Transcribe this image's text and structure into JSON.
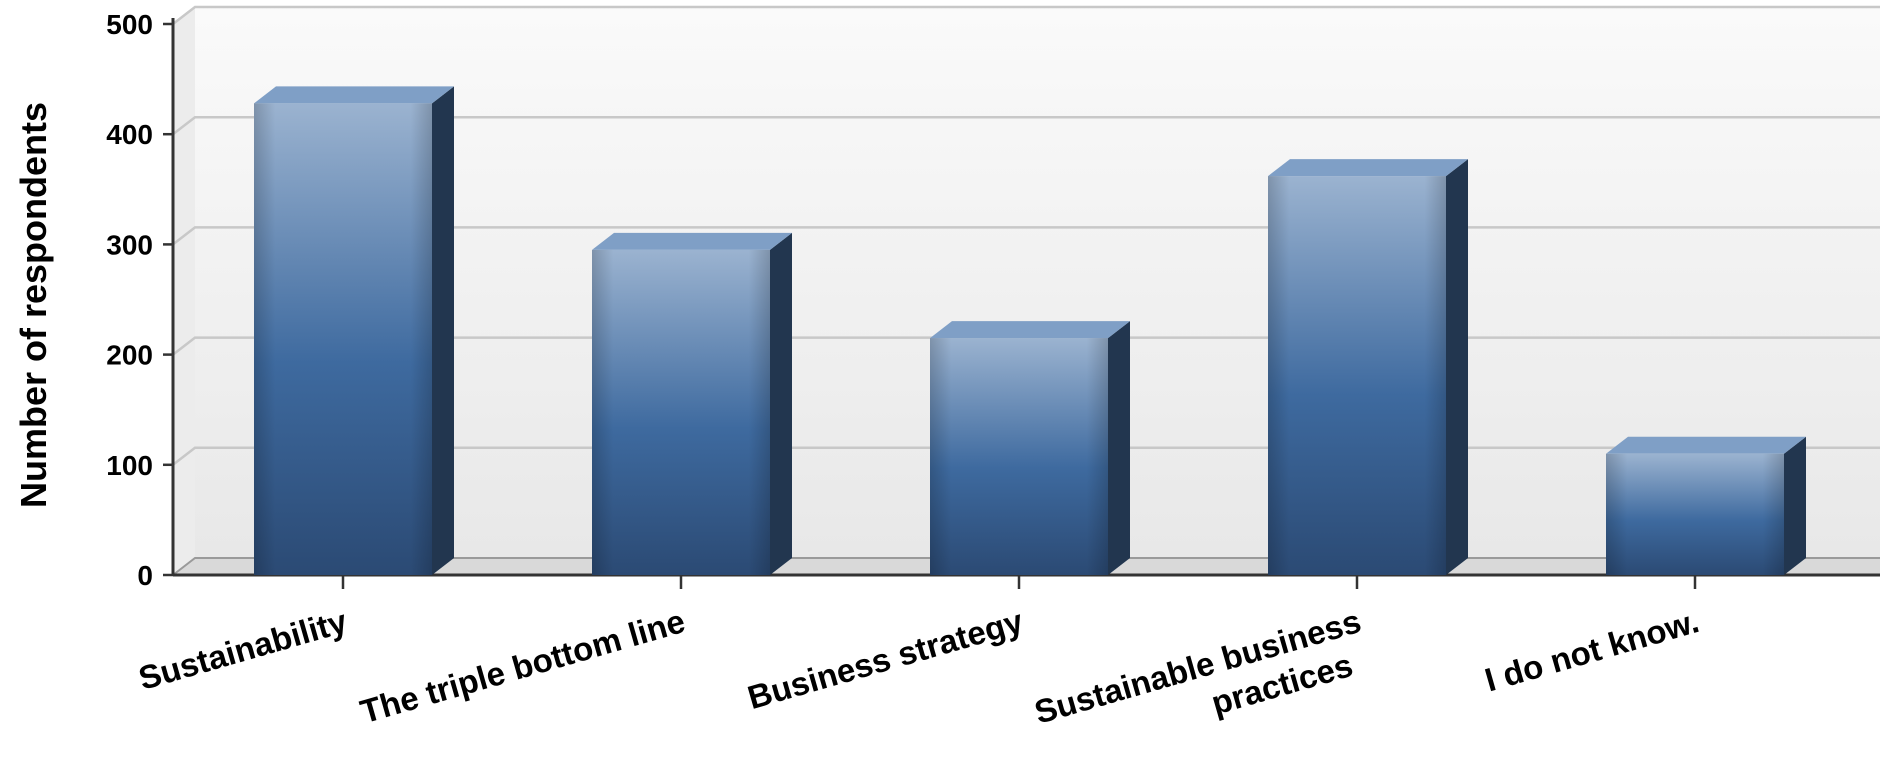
{
  "chart_data": {
    "type": "bar",
    "title": "",
    "xlabel": "",
    "ylabel": "Number of respondents",
    "ylim": [
      0,
      500
    ],
    "yticks": [
      "0",
      "100",
      "200",
      "300",
      "400",
      "500"
    ],
    "categories": [
      [
        "Sustainability"
      ],
      [
        "The triple bottom line"
      ],
      [
        "Business strategy"
      ],
      [
        "Sustainable business",
        "practices"
      ],
      [
        "I do not know."
      ]
    ],
    "values": [
      428,
      295,
      215,
      362,
      110
    ],
    "grid": true,
    "legend": "none",
    "colors": {
      "bar_top": "#9bb3d0",
      "bar_mid": "#3e6a9f",
      "bar_bottom": "#2b4a74",
      "bar_side": "#22364f",
      "bar_cap": "#7f9fc6",
      "plot_back": "#f1f1f1",
      "grid": "#c8c8c8",
      "axis": "#333333"
    }
  }
}
